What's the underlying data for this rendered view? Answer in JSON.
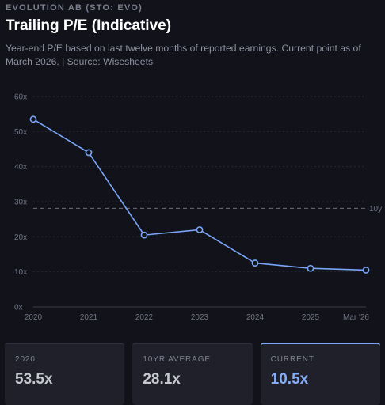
{
  "header": {
    "eyebrow": "EVOLUTION AB (STO: EVO)",
    "title": "Trailing P/E (Indicative)",
    "subtitle": "Year-end P/E based on last twelve months of reported earnings. Current point as of March 2026. | Source: Wisesheets"
  },
  "chart_data": {
    "type": "line",
    "title": "Trailing P/E (Indicative)",
    "xlabel": "",
    "ylabel": "",
    "categories": [
      "2020",
      "2021",
      "2022",
      "2023",
      "2024",
      "2025",
      "Mar '26"
    ],
    "series": [
      {
        "values": [
          53.5,
          44,
          20.5,
          22,
          12.5,
          11,
          10.5
        ]
      }
    ],
    "ylim": [
      0,
      60
    ],
    "yticks": [
      0,
      10,
      20,
      30,
      40,
      50,
      60
    ],
    "ytick_labels": [
      "0x",
      "10x",
      "20x",
      "30x",
      "40x",
      "50x",
      "60x"
    ],
    "reference_line": {
      "value": 28.1,
      "label": "10y"
    },
    "grid": true,
    "colors": {
      "line": "#79a5f6",
      "reference": "#6b6e78",
      "grid": "#262835"
    }
  },
  "cards": [
    {
      "label": "2020",
      "value": "53.5x"
    },
    {
      "label": "10YR AVERAGE",
      "value": "28.1x"
    },
    {
      "label": "CURRENT",
      "value": "10.5x"
    }
  ]
}
